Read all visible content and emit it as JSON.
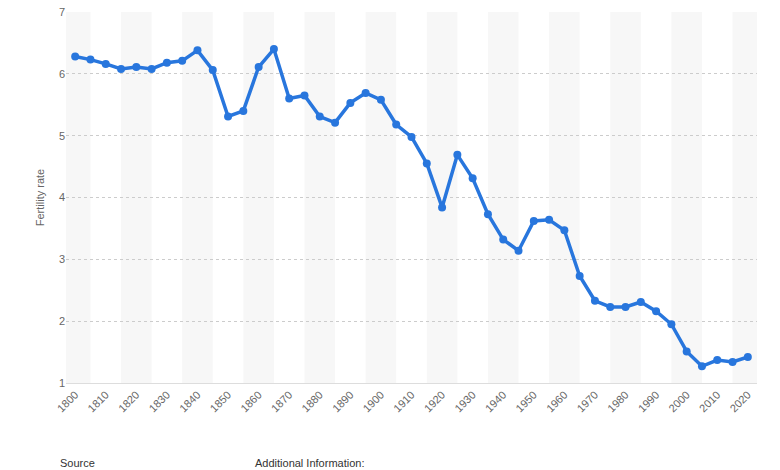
{
  "chart_data": {
    "type": "line",
    "ylabel": "Fertility rate",
    "x": [
      1800,
      1805,
      1810,
      1815,
      1820,
      1825,
      1830,
      1835,
      1840,
      1845,
      1850,
      1855,
      1860,
      1865,
      1870,
      1875,
      1880,
      1885,
      1890,
      1895,
      1900,
      1905,
      1910,
      1915,
      1920,
      1925,
      1930,
      1935,
      1940,
      1945,
      1950,
      1955,
      1960,
      1965,
      1970,
      1975,
      1980,
      1985,
      1990,
      1995,
      2000,
      2005,
      2010,
      2015,
      2020
    ],
    "values": [
      6.28,
      6.23,
      6.16,
      6.08,
      6.11,
      6.08,
      6.18,
      6.21,
      6.38,
      6.06,
      5.31,
      5.4,
      6.11,
      6.4,
      5.6,
      5.65,
      5.31,
      5.21,
      5.53,
      5.69,
      5.58,
      5.18,
      4.98,
      4.55,
      3.84,
      4.69,
      4.31,
      3.73,
      3.32,
      3.14,
      3.62,
      3.64,
      3.47,
      2.73,
      2.33,
      2.23,
      2.23,
      2.31,
      2.16,
      1.95,
      1.51,
      1.27,
      1.37,
      1.34,
      1.42
    ],
    "color": "#2876dd",
    "marker": "circle",
    "xlim": [
      1797,
      2023
    ],
    "xticks": [
      1800,
      1810,
      1820,
      1830,
      1840,
      1850,
      1860,
      1870,
      1880,
      1890,
      1900,
      1910,
      1920,
      1930,
      1940,
      1950,
      1960,
      1970,
      1980,
      1990,
      2000,
      2010,
      2020
    ],
    "ylim": [
      1,
      7
    ],
    "yticks": [
      1,
      2,
      3,
      4,
      5,
      6,
      7
    ],
    "grid": true,
    "annotations": [
      "Source",
      "Additional Information:"
    ]
  }
}
